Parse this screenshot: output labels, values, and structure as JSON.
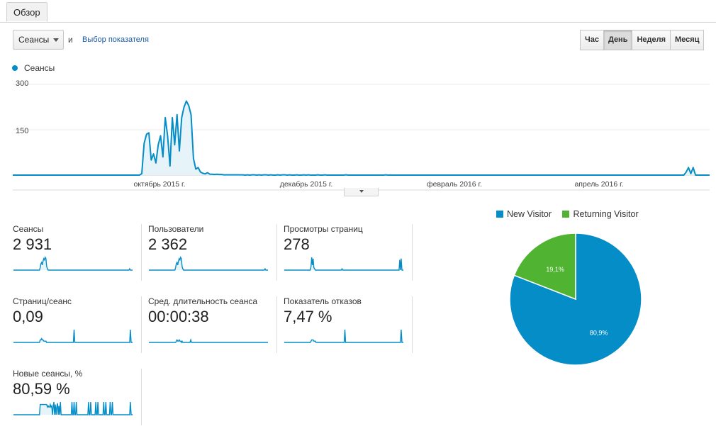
{
  "tabs": [
    {
      "label": "Обзор"
    }
  ],
  "controls": {
    "metric_select": "Сеансы",
    "and_label": "и",
    "metric_link": "Выбор показателя",
    "granularity": [
      "Час",
      "День",
      "Неделя",
      "Месяц"
    ],
    "granularity_selected": "День"
  },
  "colors": {
    "primary": "#058dc7",
    "secondary": "#50b432",
    "fill": "#e6f4fa"
  },
  "chart_data": [
    {
      "type": "area",
      "series": [
        {
          "name": "Сеансы",
          "values": [
            0,
            0,
            0,
            0,
            0,
            0,
            0,
            0,
            0,
            0,
            0,
            0,
            0,
            0,
            0,
            0,
            0,
            0,
            0,
            0,
            0,
            0,
            0,
            0,
            0,
            0,
            0,
            0,
            0,
            0,
            0,
            0,
            0,
            0,
            0,
            0,
            0,
            0,
            0,
            0,
            0,
            0,
            0,
            0,
            0,
            0,
            0,
            0,
            0,
            0,
            0,
            0,
            0,
            0,
            0,
            5,
            105,
            135,
            140,
            50,
            70,
            40,
            100,
            130,
            60,
            190,
            130,
            30,
            190,
            100,
            200,
            80,
            190,
            225,
            245,
            230,
            200,
            55,
            20,
            25,
            10,
            6,
            4,
            8,
            3,
            3,
            2,
            3,
            2,
            2,
            1,
            1,
            1,
            1,
            1,
            1,
            1,
            1,
            1,
            0,
            1,
            0,
            1,
            1,
            0,
            1,
            0,
            1,
            1,
            0,
            1,
            0,
            0,
            1,
            0,
            1,
            1,
            0,
            1,
            0,
            0,
            1,
            0,
            0,
            1,
            0,
            1,
            0,
            0,
            0,
            1,
            0,
            0,
            1,
            0,
            0,
            0,
            0,
            0,
            0,
            0,
            0,
            1,
            0,
            0,
            0,
            0,
            0,
            0,
            0,
            0,
            0,
            0,
            0,
            0,
            0,
            0,
            0,
            0,
            1,
            0,
            0,
            0,
            0,
            0,
            0,
            0,
            0,
            0,
            0,
            0,
            0,
            0,
            0,
            0,
            0,
            0,
            0,
            0,
            0,
            0,
            0,
            0,
            0,
            0,
            0,
            0,
            0,
            0,
            0,
            0,
            0,
            0,
            0,
            0,
            0,
            0,
            0,
            0,
            0,
            0,
            0,
            0,
            0,
            0,
            0,
            0,
            0,
            0,
            0,
            0,
            0,
            0,
            0,
            0,
            0,
            0,
            0,
            0,
            0,
            0,
            0,
            0,
            0,
            0,
            0,
            0,
            0,
            0,
            0,
            0,
            0,
            0,
            0,
            0,
            0,
            0,
            0,
            0,
            0,
            0,
            0,
            0,
            0,
            0,
            0,
            0,
            0,
            0,
            0,
            0,
            0,
            0,
            0,
            0,
            0,
            0,
            0,
            0,
            0,
            0,
            0,
            0,
            0,
            0,
            0,
            0,
            0,
            0,
            0,
            0,
            0,
            0,
            0,
            0,
            0,
            0,
            0,
            0,
            0,
            0,
            0,
            0,
            0,
            0,
            0,
            0,
            10,
            25,
            5,
            25,
            0,
            0,
            0,
            0,
            0,
            0,
            0
          ]
        }
      ],
      "y_ticks": [
        "300",
        "150"
      ],
      "ylim": [
        0,
        300
      ],
      "x_ticks": [
        "октябрь 2015 г.",
        "декабрь 2015 г.",
        "февраль 2016 г.",
        "апрель 2016 г."
      ],
      "grid": true
    },
    {
      "type": "pie",
      "series": [
        {
          "name": "New Visitor",
          "value": 80.9,
          "label": "80,9%"
        },
        {
          "name": "Returning Visitor",
          "value": 19.1,
          "label": "19,1%"
        }
      ],
      "legend": "top"
    }
  ],
  "scorecards": [
    {
      "label": "Сеансы",
      "value": "2 931",
      "spark": [
        0,
        0,
        0,
        0,
        0,
        0,
        0,
        0,
        0,
        0,
        0,
        0,
        0,
        0,
        0,
        0,
        0,
        0,
        0,
        0,
        0,
        0,
        0,
        0,
        0,
        0,
        0,
        0,
        0,
        0,
        0,
        0,
        0,
        0,
        0,
        0,
        0,
        2,
        5,
        6,
        4,
        7,
        9,
        8,
        10,
        9,
        3,
        1,
        0,
        0,
        0,
        0,
        0,
        0,
        0,
        0,
        0,
        0,
        0,
        0,
        0,
        0,
        0,
        0,
        0,
        0,
        0,
        0,
        0,
        0,
        0,
        0,
        0,
        0,
        0,
        0,
        0,
        0,
        0,
        0,
        0,
        0,
        0,
        0,
        0,
        0,
        0,
        0,
        0,
        0,
        0,
        0,
        0,
        0,
        0,
        0,
        0,
        0,
        0,
        0,
        0,
        0,
        0,
        0,
        0,
        0,
        0,
        0,
        0,
        0,
        0,
        0,
        0,
        0,
        0,
        0,
        0,
        0,
        0,
        0,
        0,
        0,
        0,
        0,
        0,
        0,
        0,
        0,
        0,
        0,
        0,
        0,
        0,
        0,
        0,
        0,
        0,
        0,
        0,
        0,
        0,
        0,
        0,
        0,
        0,
        0,
        0,
        0,
        0,
        0,
        0,
        0,
        0,
        0,
        0,
        0,
        0,
        0,
        0,
        0,
        0,
        1,
        0,
        0,
        0,
        0
      ]
    },
    {
      "label": "Пользователи",
      "value": "2 362",
      "spark": [
        0,
        0,
        0,
        0,
        0,
        0,
        0,
        0,
        0,
        0,
        0,
        0,
        0,
        0,
        0,
        0,
        0,
        0,
        0,
        0,
        0,
        0,
        0,
        0,
        0,
        0,
        0,
        0,
        0,
        0,
        0,
        0,
        0,
        0,
        0,
        0,
        0,
        2,
        5,
        6,
        4,
        7,
        9,
        8,
        10,
        9,
        3,
        1,
        0,
        0,
        0,
        0,
        0,
        0,
        0,
        0,
        0,
        0,
        0,
        0,
        0,
        0,
        0,
        0,
        0,
        0,
        0,
        0,
        0,
        0,
        0,
        0,
        0,
        0,
        0,
        0,
        0,
        0,
        0,
        0,
        0,
        0,
        0,
        0,
        0,
        0,
        0,
        0,
        0,
        0,
        0,
        0,
        0,
        0,
        0,
        0,
        0,
        0,
        0,
        0,
        0,
        0,
        0,
        0,
        0,
        0,
        0,
        0,
        0,
        0,
        0,
        0,
        0,
        0,
        0,
        0,
        0,
        0,
        0,
        0,
        0,
        0,
        0,
        0,
        0,
        0,
        0,
        0,
        0,
        0,
        0,
        0,
        0,
        0,
        0,
        0,
        0,
        0,
        0,
        0,
        0,
        0,
        0,
        0,
        0,
        0,
        0,
        0,
        0,
        0,
        0,
        0,
        0,
        0,
        0,
        0,
        0,
        0,
        0,
        0,
        0,
        1,
        0,
        0,
        0,
        0
      ]
    },
    {
      "label": "Просмотры страниц",
      "value": "278",
      "spark": [
        0,
        0,
        0,
        0,
        0,
        0,
        0,
        0,
        0,
        0,
        0,
        0,
        0,
        0,
        0,
        0,
        0,
        0,
        0,
        0,
        0,
        0,
        0,
        0,
        0,
        0,
        0,
        0,
        0,
        0,
        0,
        0,
        0,
        0,
        0,
        0,
        0,
        3,
        10,
        4,
        9,
        2,
        1,
        0,
        0,
        0,
        0,
        0,
        0,
        0,
        0,
        0,
        0,
        0,
        0,
        0,
        0,
        0,
        0,
        0,
        0,
        0,
        0,
        0,
        0,
        0,
        0,
        0,
        0,
        0,
        0,
        0,
        0,
        0,
        0,
        0,
        0,
        0,
        0,
        0,
        1,
        0,
        0,
        0,
        0,
        0,
        0,
        0,
        0,
        0,
        0,
        0,
        0,
        0,
        0,
        0,
        0,
        0,
        0,
        0,
        0,
        0,
        0,
        0,
        0,
        0,
        0,
        0,
        0,
        0,
        0,
        0,
        0,
        0,
        0,
        0,
        0,
        0,
        0,
        0,
        0,
        0,
        0,
        0,
        0,
        0,
        0,
        0,
        0,
        0,
        0,
        0,
        0,
        0,
        0,
        0,
        0,
        0,
        0,
        0,
        0,
        0,
        0,
        0,
        0,
        0,
        0,
        0,
        0,
        0,
        0,
        0,
        0,
        0,
        0,
        0,
        0,
        0,
        0,
        0,
        8,
        0,
        9,
        0,
        0,
        0
      ]
    },
    {
      "label": "Страниц/сеанс",
      "value": "0,09",
      "spark": [
        0,
        0,
        0,
        0,
        0,
        0,
        0,
        0,
        0,
        0,
        0,
        0,
        0,
        0,
        0,
        0,
        0,
        0,
        0,
        0,
        0,
        0,
        0,
        0,
        0,
        0,
        0,
        0,
        0,
        0,
        0,
        0,
        0,
        0,
        0,
        0,
        0,
        2,
        2,
        3,
        2,
        2,
        1,
        1,
        1,
        1,
        0,
        0,
        0,
        0,
        0,
        0,
        0,
        0,
        0,
        0,
        0,
        0,
        0,
        0,
        0,
        0,
        0,
        0,
        0,
        0,
        0,
        0,
        0,
        0,
        0,
        0,
        0,
        0,
        0,
        0,
        0,
        0,
        0,
        0,
        0,
        0,
        0,
        0,
        10,
        0,
        0,
        0,
        0,
        0,
        0,
        0,
        0,
        0,
        0,
        0,
        0,
        0,
        0,
        0,
        0,
        0,
        0,
        0,
        0,
        0,
        0,
        0,
        0,
        0,
        0,
        0,
        0,
        0,
        0,
        0,
        0,
        0,
        0,
        0,
        0,
        0,
        0,
        0,
        0,
        0,
        0,
        0,
        0,
        0,
        0,
        0,
        0,
        0,
        0,
        0,
        0,
        0,
        0,
        0,
        0,
        0,
        0,
        0,
        0,
        0,
        0,
        0,
        0,
        0,
        0,
        0,
        0,
        0,
        0,
        0,
        0,
        0,
        0,
        0,
        0,
        0,
        10,
        0,
        0,
        0
      ]
    },
    {
      "label": "Сред. длительность сеанса",
      "value": "00:00:38",
      "spark": [
        0,
        0,
        0,
        0,
        0,
        0,
        0,
        0,
        0,
        0,
        0,
        0,
        0,
        0,
        0,
        0,
        0,
        0,
        0,
        0,
        0,
        0,
        0,
        0,
        0,
        0,
        0,
        0,
        0,
        0,
        0,
        0,
        0,
        0,
        0,
        0,
        0,
        0,
        1,
        2,
        1,
        1,
        2,
        1,
        1,
        0,
        1,
        0,
        0,
        0,
        0,
        0,
        0,
        0,
        0,
        0,
        0,
        0,
        2,
        0,
        0,
        0,
        0,
        0,
        0,
        0,
        0,
        0,
        0,
        0,
        0,
        0,
        0,
        0,
        0,
        0,
        0,
        0,
        0,
        0,
        0,
        0,
        0,
        0,
        0,
        0,
        0,
        0,
        0,
        0,
        0,
        0,
        0,
        0,
        0,
        0,
        0,
        0,
        0,
        0,
        0,
        0,
        0,
        0,
        0,
        0,
        0,
        0,
        0,
        0,
        0,
        0,
        0,
        0,
        0,
        0,
        0,
        0,
        0,
        0,
        0,
        0,
        0,
        0,
        0,
        0,
        0,
        0,
        0,
        0,
        0,
        0,
        0,
        0,
        0,
        0,
        0,
        0,
        0,
        0,
        0,
        0,
        0,
        0,
        0,
        0,
        0,
        0,
        0,
        0,
        0,
        0,
        0,
        0,
        0,
        0,
        0,
        0,
        0,
        0,
        0,
        0,
        0,
        0,
        0,
        0
      ]
    },
    {
      "label": "Показатель отказов",
      "value": "7,47 %",
      "spark": [
        0,
        0,
        0,
        0,
        0,
        0,
        0,
        0,
        0,
        0,
        0,
        0,
        0,
        0,
        0,
        0,
        0,
        0,
        0,
        0,
        0,
        0,
        0,
        0,
        0,
        0,
        0,
        0,
        0,
        0,
        0,
        0,
        0,
        0,
        0,
        0,
        0,
        1,
        2,
        2,
        2,
        1,
        1,
        1,
        0,
        0,
        0,
        0,
        0,
        0,
        0,
        0,
        0,
        0,
        0,
        0,
        0,
        0,
        0,
        0,
        0,
        0,
        0,
        0,
        0,
        0,
        0,
        0,
        0,
        0,
        0,
        0,
        0,
        0,
        0,
        0,
        0,
        0,
        0,
        0,
        0,
        0,
        0,
        0,
        10,
        0,
        0,
        0,
        0,
        0,
        0,
        0,
        0,
        0,
        0,
        0,
        0,
        0,
        0,
        0,
        0,
        0,
        0,
        0,
        0,
        0,
        0,
        0,
        0,
        0,
        0,
        0,
        0,
        0,
        0,
        0,
        0,
        0,
        0,
        0,
        0,
        0,
        0,
        0,
        0,
        0,
        0,
        0,
        0,
        0,
        0,
        0,
        0,
        0,
        0,
        0,
        0,
        0,
        0,
        0,
        0,
        0,
        0,
        0,
        0,
        0,
        0,
        0,
        0,
        0,
        0,
        0,
        0,
        0,
        0,
        0,
        0,
        0,
        0,
        0,
        0,
        0,
        10,
        0,
        0,
        0
      ]
    },
    {
      "label": "Новые сеансы, %",
      "value": "80,59 %",
      "spark": [
        0,
        0,
        0,
        0,
        0,
        0,
        0,
        0,
        0,
        0,
        0,
        0,
        0,
        0,
        0,
        0,
        0,
        0,
        0,
        0,
        0,
        0,
        0,
        0,
        0,
        0,
        0,
        0,
        0,
        0,
        0,
        0,
        0,
        0,
        0,
        0,
        0,
        8,
        8,
        8,
        8,
        8,
        8,
        8,
        8,
        8,
        8,
        6,
        7,
        6,
        6,
        8,
        6,
        7,
        0,
        6,
        10,
        0,
        8,
        0,
        6,
        9,
        0,
        7,
        0,
        10,
        0,
        0,
        0,
        0,
        0,
        0,
        0,
        0,
        0,
        0,
        0,
        0,
        0,
        0,
        0,
        10,
        0,
        0,
        10,
        0,
        0,
        10,
        0,
        0,
        0,
        0,
        0,
        0,
        0,
        0,
        0,
        0,
        0,
        0,
        0,
        0,
        0,
        0,
        10,
        0,
        0,
        10,
        0,
        0,
        0,
        0,
        0,
        0,
        10,
        0,
        0,
        10,
        0,
        0,
        0,
        0,
        0,
        0,
        0,
        10,
        0,
        0,
        10,
        0,
        0,
        0,
        0,
        0,
        10,
        0,
        0,
        10,
        0,
        0,
        0,
        0,
        0,
        0,
        0,
        0,
        0,
        0,
        0,
        0,
        0,
        0,
        0,
        0,
        0,
        0,
        0,
        0,
        0,
        0,
        0,
        0,
        10,
        0,
        0,
        0
      ]
    }
  ]
}
